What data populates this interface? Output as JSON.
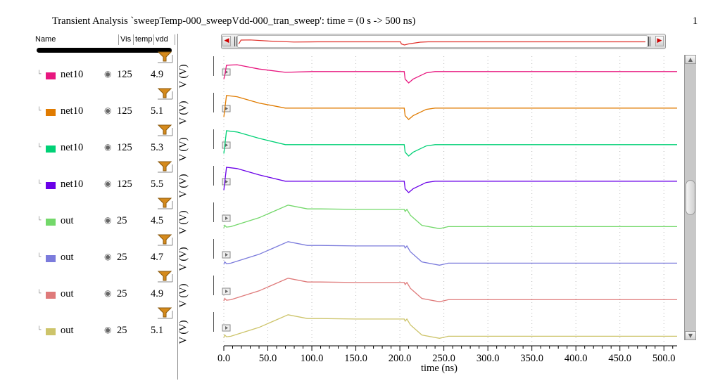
{
  "window": {
    "title": "Transient Analysis `sweepTemp-000_sweepVdd-000_tran_sweep': time = (0 s -> 500 ns)",
    "page_number": "1"
  },
  "panel": {
    "headers": {
      "name": "Name",
      "vis": "Vis",
      "temp": "temp",
      "vdd": "vdd"
    },
    "tree_glyph": "└",
    "eye_icon": "eye-icon",
    "rows": [
      {
        "name": "net10",
        "temp": "125",
        "vdd": "4.9",
        "unit": "V (V)",
        "color": "#e8177f"
      },
      {
        "name": "net10",
        "temp": "125",
        "vdd": "5.1",
        "unit": "V (V)",
        "color": "#e07b00"
      },
      {
        "name": "net10",
        "temp": "125",
        "vdd": "5.3",
        "unit": "V (V)",
        "color": "#00d176"
      },
      {
        "name": "net10",
        "temp": "125",
        "vdd": "5.5",
        "unit": "V (V)",
        "color": "#6a00e8"
      },
      {
        "name": "out",
        "temp": "25",
        "vdd": "4.5",
        "unit": "V (V)",
        "color": "#73d86a"
      },
      {
        "name": "out",
        "temp": "25",
        "vdd": "4.7",
        "unit": "V (V)",
        "color": "#7b7bdc"
      },
      {
        "name": "out",
        "temp": "25",
        "vdd": "4.9",
        "unit": "V (V)",
        "color": "#df7a7a"
      },
      {
        "name": "out",
        "temp": "25",
        "vdd": "5.1",
        "unit": "V (V)",
        "color": "#cdc46a"
      }
    ]
  },
  "chart_data": {
    "type": "line",
    "xlabel": "time (ns)",
    "xlim": [
      0,
      515
    ],
    "xticks": [
      "0.0",
      "50.0",
      "100.0",
      "150.0",
      "200.0",
      "250.0",
      "300.0",
      "350.0",
      "400.0",
      "450.0",
      "500.0"
    ],
    "xtick_values": [
      0,
      50,
      100,
      150,
      200,
      250,
      300,
      350,
      400,
      450,
      500
    ],
    "grid": true,
    "series": [
      {
        "name": "net10",
        "color": "#e8177f",
        "x": [
          0,
          1,
          3,
          15,
          40,
          70,
          90,
          100,
          150,
          205,
          206,
          210,
          215,
          230,
          240,
          245,
          515
        ],
        "y": [
          0.85,
          0.7,
          0.3,
          0.28,
          0.45,
          0.58,
          0.56,
          0.55,
          0.55,
          0.55,
          0.85,
          1.0,
          0.85,
          0.6,
          0.55,
          0.55,
          0.55
        ]
      },
      {
        "name": "net10",
        "color": "#e07b00",
        "x": [
          0,
          1,
          3,
          15,
          40,
          70,
          90,
          100,
          150,
          205,
          206,
          210,
          215,
          230,
          240,
          245,
          515
        ],
        "y": [
          0.9,
          0.6,
          0.05,
          0.1,
          0.35,
          0.55,
          0.55,
          0.55,
          0.55,
          0.55,
          0.85,
          1.0,
          0.85,
          0.6,
          0.55,
          0.55,
          0.55
        ]
      },
      {
        "name": "net10",
        "color": "#00d176",
        "x": [
          0,
          1,
          3,
          15,
          40,
          70,
          90,
          100,
          150,
          205,
          206,
          210,
          215,
          230,
          240,
          245,
          515
        ],
        "y": [
          0.9,
          0.6,
          0.0,
          0.05,
          0.3,
          0.55,
          0.55,
          0.55,
          0.55,
          0.55,
          0.85,
          1.0,
          0.85,
          0.6,
          0.55,
          0.55,
          0.55
        ]
      },
      {
        "name": "net10",
        "color": "#6a00e8",
        "x": [
          0,
          1,
          3,
          15,
          40,
          70,
          90,
          100,
          150,
          205,
          206,
          210,
          215,
          230,
          240,
          245,
          515
        ],
        "y": [
          0.9,
          0.6,
          0.0,
          0.05,
          0.3,
          0.55,
          0.55,
          0.55,
          0.55,
          0.55,
          0.85,
          1.0,
          0.85,
          0.6,
          0.55,
          0.55,
          0.55
        ]
      },
      {
        "name": "out",
        "color": "#73d86a",
        "x": [
          0,
          1,
          3,
          8,
          40,
          73,
          95,
          110,
          150,
          205,
          206,
          208,
          212,
          225,
          245,
          255,
          270,
          515
        ],
        "y": [
          0.95,
          0.85,
          0.92,
          0.9,
          0.55,
          0.05,
          0.2,
          0.2,
          0.22,
          0.22,
          0.3,
          0.22,
          0.45,
          0.85,
          0.98,
          0.9,
          0.9,
          0.9
        ]
      },
      {
        "name": "out",
        "color": "#7b7bdc",
        "x": [
          0,
          1,
          3,
          8,
          40,
          73,
          95,
          110,
          150,
          205,
          206,
          208,
          212,
          225,
          245,
          255,
          270,
          515
        ],
        "y": [
          0.95,
          0.85,
          0.92,
          0.9,
          0.55,
          0.05,
          0.2,
          0.2,
          0.22,
          0.22,
          0.3,
          0.22,
          0.45,
          0.85,
          0.98,
          0.9,
          0.9,
          0.9
        ]
      },
      {
        "name": "out",
        "color": "#df7a7a",
        "x": [
          0,
          1,
          3,
          8,
          40,
          73,
          95,
          110,
          150,
          205,
          206,
          208,
          212,
          225,
          245,
          255,
          270,
          515
        ],
        "y": [
          0.95,
          0.85,
          0.92,
          0.9,
          0.55,
          0.05,
          0.2,
          0.2,
          0.22,
          0.22,
          0.3,
          0.22,
          0.45,
          0.85,
          0.98,
          0.9,
          0.9,
          0.9
        ]
      },
      {
        "name": "out",
        "color": "#cdc46a",
        "x": [
          0,
          1,
          3,
          8,
          40,
          73,
          95,
          110,
          150,
          205,
          206,
          208,
          212,
          225,
          245,
          255,
          270,
          515
        ],
        "y": [
          0.95,
          0.85,
          0.92,
          0.9,
          0.55,
          0.05,
          0.2,
          0.2,
          0.22,
          0.22,
          0.3,
          0.22,
          0.45,
          0.85,
          0.98,
          0.9,
          0.9,
          0.9
        ]
      }
    ]
  }
}
